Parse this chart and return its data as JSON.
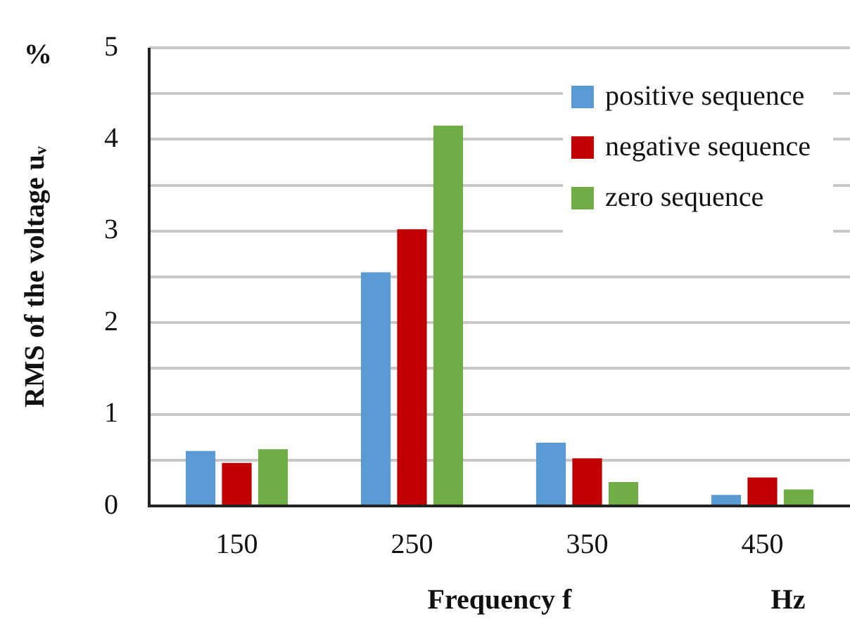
{
  "chart_data": {
    "type": "bar",
    "xlabel": "Frequency f",
    "ylabel": "RMS of the voltage uᵥ",
    "annotations": [
      "%",
      "Hz"
    ],
    "categories": [
      "150",
      "250",
      "350",
      "450"
    ],
    "series": [
      {
        "name": "positive sequence",
        "color": "#5b9bd5",
        "values": [
          0.6,
          2.55,
          0.69,
          0.12
        ]
      },
      {
        "name": "negative sequence",
        "color": "#c00000",
        "values": [
          0.47,
          3.02,
          0.52,
          0.31
        ]
      },
      {
        "name": "zero sequence",
        "color": "#70ad47",
        "values": [
          0.62,
          4.15,
          0.26,
          0.18
        ]
      }
    ],
    "ylim": [
      0,
      5
    ],
    "yticks": [
      0,
      {
        "value": 0.5,
        "label": null
      },
      1,
      {
        "value": 1.5,
        "label": null
      },
      2,
      {
        "value": 2.5,
        "label": null
      },
      3,
      {
        "value": 3.5,
        "label": null
      },
      4,
      {
        "value": 4.5,
        "label": null
      },
      5
    ],
    "grid": "y",
    "legend": "top right"
  }
}
